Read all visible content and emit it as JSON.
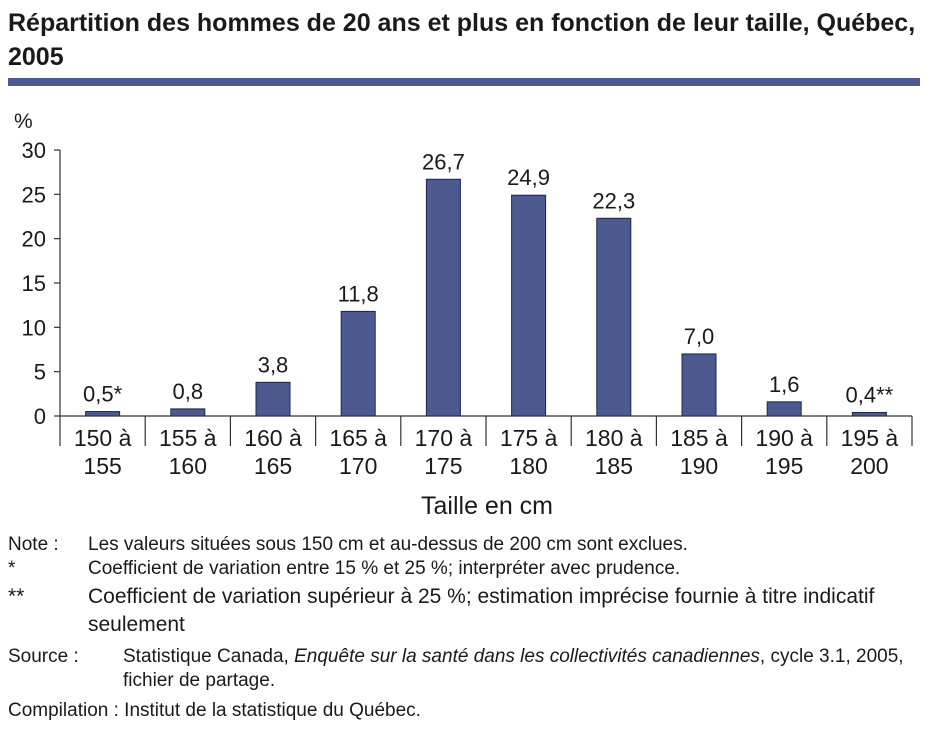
{
  "chart_data": {
    "type": "bar",
    "title": "Répartition des hommes de 20 ans et plus en fonction de leur taille, Québec, 2005",
    "ylabel": "%",
    "xlabel": "Taille en cm",
    "ylim": [
      0,
      30
    ],
    "yticks": [
      "0",
      "5",
      "10",
      "15",
      "20",
      "25",
      "30"
    ],
    "grid": false,
    "categories": [
      [
        "150 à",
        "155"
      ],
      [
        "155 à",
        "160"
      ],
      [
        "160 à",
        "165"
      ],
      [
        "165 à",
        "170"
      ],
      [
        "170 à",
        "175"
      ],
      [
        "175 à",
        "180"
      ],
      [
        "180 à",
        "185"
      ],
      [
        "185 à",
        "190"
      ],
      [
        "190 à",
        "195"
      ],
      [
        "195 à",
        "200"
      ]
    ],
    "values": [
      0.5,
      0.8,
      3.8,
      11.8,
      26.7,
      24.9,
      22.3,
      7.0,
      1.6,
      0.4
    ],
    "data_labels": [
      "0,5*",
      "0,8",
      "3,8",
      "11,8",
      "26,7",
      "24,9",
      "22,3",
      "7,0",
      "1,6",
      "0,4**"
    ],
    "bar_color": "#4d5a8f"
  },
  "notes": {
    "note_label": "Note :",
    "note_text": "Les valeurs situées sous 150 cm et au-dessus de 200 cm sont exclues.",
    "star1_label": "*",
    "star1_text": "Coefficient de variation entre 15 % et 25 %; interpréter avec prudence.",
    "star2_label": "**",
    "star2_text": "Coefficient de variation supérieur à 25 %; estimation imprécise fournie à titre indicatif seulement",
    "source_label": "Source :",
    "source_pre": "Statistique Canada,",
    "source_italic": "Enquête sur la santé dans les collectivités canadiennes",
    "source_post": ", cycle 3.1, 2005, fichier de partage.",
    "compilation": "Compilation : Institut de la statistique du Québec."
  }
}
